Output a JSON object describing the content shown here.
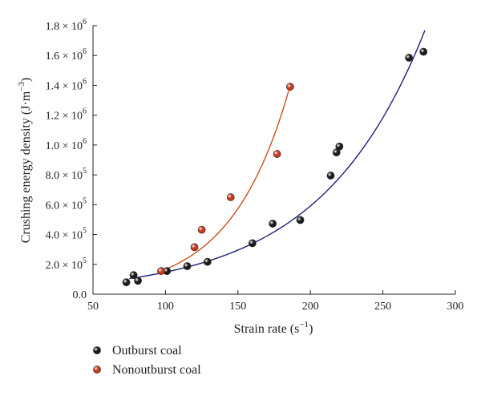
{
  "chart_data": {
    "type": "scatter",
    "xlabel": "Strain rate (s",
    "xlabel_sup": "−1",
    "xlabel_end": ")",
    "ylabel": "Crushing energy density (J·m",
    "ylabel_sup": "−3",
    "ylabel_end": ")",
    "xlim": [
      50,
      300
    ],
    "ylim": [
      0,
      1800000
    ],
    "grid": false,
    "legend_position": "bottom-left",
    "x_ticks": [
      {
        "value": 50,
        "label": "50"
      },
      {
        "value": 100,
        "label": "100"
      },
      {
        "value": 150,
        "label": "150"
      },
      {
        "value": 200,
        "label": "200"
      },
      {
        "value": 250,
        "label": "250"
      },
      {
        "value": 300,
        "label": "300"
      }
    ],
    "y_ticks": [
      {
        "value": 0,
        "mant": "0.0",
        "exp": ""
      },
      {
        "value": 200000,
        "mant": "2.0 × 10",
        "exp": "5"
      },
      {
        "value": 400000,
        "mant": "4.0 × 10",
        "exp": "5"
      },
      {
        "value": 600000,
        "mant": "6.0 × 10",
        "exp": "5"
      },
      {
        "value": 800000,
        "mant": "8.0 × 10",
        "exp": "5"
      },
      {
        "value": 1000000,
        "mant": "1.0 × 10",
        "exp": "6"
      },
      {
        "value": 1200000,
        "mant": "1.2 × 10",
        "exp": "6"
      },
      {
        "value": 1400000,
        "mant": "1.4 × 10",
        "exp": "6"
      },
      {
        "value": 1600000,
        "mant": "1.6 × 10",
        "exp": "6"
      },
      {
        "value": 1800000,
        "mant": "1.8 × 10",
        "exp": "6"
      }
    ],
    "series": [
      {
        "name": "Outburst coal",
        "color": "#1a1a1a",
        "fit_color": "#1f1f7a",
        "points": [
          [
            73,
            80000
          ],
          [
            78,
            128000
          ],
          [
            81,
            90000
          ],
          [
            101,
            155000
          ],
          [
            115,
            188000
          ],
          [
            129,
            217000
          ],
          [
            160,
            342000
          ],
          [
            174,
            473000
          ],
          [
            193,
            497000
          ],
          [
            214,
            795000
          ],
          [
            218,
            950000
          ],
          [
            220,
            990000
          ],
          [
            268,
            1585000
          ],
          [
            278,
            1625000
          ]
        ],
        "fit": {
          "x_range": [
            75,
            279
          ],
          "a": 36900,
          "b": 0.01387
        }
      },
      {
        "name": "Nonoutburst coal",
        "color": "#c8381c",
        "fit_color": "#c8501c",
        "points": [
          [
            97,
            155000
          ],
          [
            120,
            315000
          ],
          [
            125,
            432000
          ],
          [
            145,
            650000
          ],
          [
            177,
            940000
          ],
          [
            186,
            1390000
          ]
        ],
        "fit": {
          "x_range": [
            97,
            185
          ],
          "a": 14000,
          "b": 0.02475
        }
      }
    ]
  }
}
